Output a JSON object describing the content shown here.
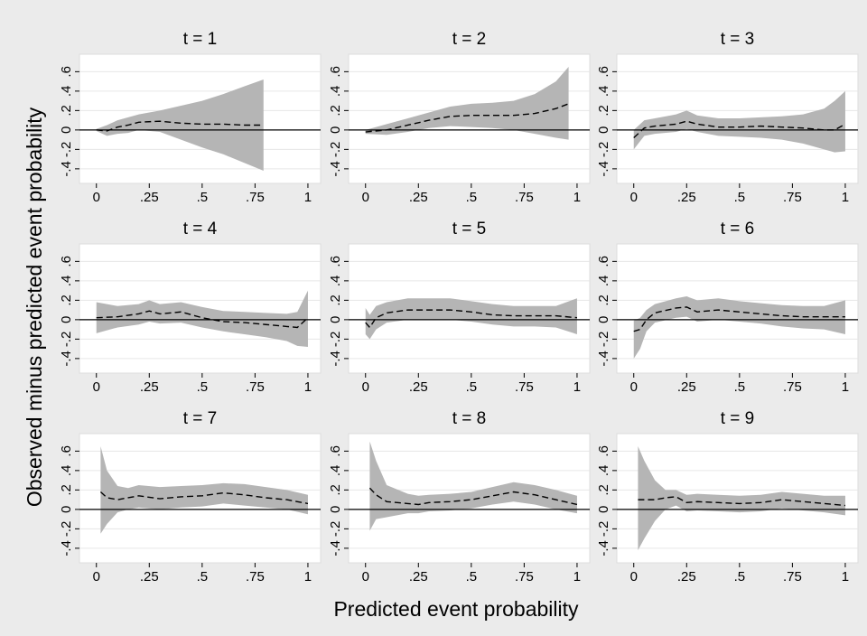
{
  "ylabel": "Observed minus predicted event probability",
  "xlabel": "Predicted event probability",
  "chart_data": [
    {
      "type": "band-line",
      "title": "t = 1",
      "color": "#b5b5b5",
      "line_color": "#000000",
      "grid": true,
      "xlim": [
        -0.08,
        1.06
      ],
      "ylim": [
        -0.55,
        0.78
      ],
      "xticks": [
        0,
        {
          "value": 0.25,
          "label": ".25"
        },
        {
          "value": 0.5,
          "label": ".5"
        },
        {
          "value": 0.75,
          "label": ".75"
        },
        1
      ],
      "yticks": [
        {
          "value": -0.4,
          "label": "-.4"
        },
        {
          "value": -0.2,
          "label": "-.2"
        },
        0,
        {
          "value": 0.2,
          "label": ".2"
        },
        {
          "value": 0.4,
          "label": ".4"
        },
        {
          "value": 0.6,
          "label": ".6"
        }
      ],
      "x": [
        0,
        0.05,
        0.1,
        0.15,
        0.2,
        0.3,
        0.4,
        0.5,
        0.6,
        0.7,
        0.79
      ],
      "values": [
        0,
        -0.01,
        0.03,
        0.05,
        0.08,
        0.09,
        0.07,
        0.06,
        0.06,
        0.05,
        0.05
      ],
      "upper": [
        0.01,
        0.05,
        0.1,
        0.13,
        0.16,
        0.2,
        0.25,
        0.3,
        0.37,
        0.45,
        0.52
      ],
      "lower": [
        -0.01,
        -0.06,
        -0.04,
        -0.03,
        0,
        -0.02,
        -0.1,
        -0.18,
        -0.25,
        -0.34,
        -0.42
      ]
    },
    {
      "type": "band-line",
      "title": "t = 2",
      "color": "#b5b5b5",
      "line_color": "#000000",
      "grid": true,
      "xlim": [
        -0.08,
        1.06
      ],
      "ylim": [
        -0.55,
        0.78
      ],
      "xticks": [
        0,
        {
          "value": 0.25,
          "label": ".25"
        },
        {
          "value": 0.5,
          "label": ".5"
        },
        {
          "value": 0.75,
          "label": ".75"
        },
        1
      ],
      "yticks": [
        {
          "value": -0.4,
          "label": "-.4"
        },
        {
          "value": -0.2,
          "label": "-.2"
        },
        0,
        {
          "value": 0.2,
          "label": ".2"
        },
        {
          "value": 0.4,
          "label": ".4"
        },
        {
          "value": 0.6,
          "label": ".6"
        }
      ],
      "x": [
        0,
        0.1,
        0.2,
        0.3,
        0.4,
        0.5,
        0.6,
        0.7,
        0.8,
        0.9,
        0.96
      ],
      "values": [
        -0.02,
        0,
        0.05,
        0.1,
        0.14,
        0.15,
        0.15,
        0.15,
        0.17,
        0.22,
        0.27
      ],
      "upper": [
        0,
        0.06,
        0.12,
        0.18,
        0.24,
        0.27,
        0.28,
        0.3,
        0.37,
        0.5,
        0.65
      ],
      "lower": [
        -0.04,
        -0.05,
        -0.02,
        0.02,
        0.04,
        0.03,
        0.02,
        0,
        -0.04,
        -0.08,
        -0.1
      ]
    },
    {
      "type": "band-line",
      "title": "t = 3",
      "color": "#b5b5b5",
      "line_color": "#000000",
      "grid": true,
      "xlim": [
        -0.08,
        1.06
      ],
      "ylim": [
        -0.55,
        0.78
      ],
      "xticks": [
        0,
        {
          "value": 0.25,
          "label": ".25"
        },
        {
          "value": 0.5,
          "label": ".5"
        },
        {
          "value": 0.75,
          "label": ".75"
        },
        1
      ],
      "yticks": [
        {
          "value": -0.4,
          "label": "-.4"
        },
        {
          "value": -0.2,
          "label": "-.2"
        },
        0,
        {
          "value": 0.2,
          "label": ".2"
        },
        {
          "value": 0.4,
          "label": ".4"
        },
        {
          "value": 0.6,
          "label": ".6"
        }
      ],
      "x": [
        0,
        0.05,
        0.1,
        0.2,
        0.25,
        0.3,
        0.4,
        0.5,
        0.6,
        0.7,
        0.8,
        0.9,
        0.95,
        1
      ],
      "values": [
        -0.08,
        0.02,
        0.04,
        0.06,
        0.09,
        0.06,
        0.03,
        0.03,
        0.04,
        0.03,
        0.02,
        0,
        0,
        0.06
      ],
      "upper": [
        0,
        0.1,
        0.12,
        0.16,
        0.2,
        0.15,
        0.12,
        0.12,
        0.13,
        0.14,
        0.16,
        0.22,
        0.3,
        0.4
      ],
      "lower": [
        -0.2,
        -0.06,
        -0.04,
        -0.02,
        0.01,
        -0.02,
        -0.06,
        -0.07,
        -0.08,
        -0.1,
        -0.14,
        -0.2,
        -0.23,
        -0.22
      ]
    },
    {
      "type": "band-line",
      "title": "t = 4",
      "color": "#b5b5b5",
      "line_color": "#000000",
      "grid": true,
      "xlim": [
        -0.08,
        1.06
      ],
      "ylim": [
        -0.55,
        0.78
      ],
      "xticks": [
        0,
        {
          "value": 0.25,
          "label": ".25"
        },
        {
          "value": 0.5,
          "label": ".5"
        },
        {
          "value": 0.75,
          "label": ".75"
        },
        1
      ],
      "yticks": [
        {
          "value": -0.4,
          "label": "-.4"
        },
        {
          "value": -0.2,
          "label": "-.2"
        },
        0,
        {
          "value": 0.2,
          "label": ".2"
        },
        {
          "value": 0.4,
          "label": ".4"
        },
        {
          "value": 0.6,
          "label": ".6"
        }
      ],
      "x": [
        0,
        0.1,
        0.2,
        0.25,
        0.3,
        0.4,
        0.5,
        0.6,
        0.7,
        0.8,
        0.9,
        0.95,
        1
      ],
      "values": [
        0.02,
        0.03,
        0.06,
        0.09,
        0.06,
        0.08,
        0.02,
        -0.02,
        -0.03,
        -0.05,
        -0.07,
        -0.08,
        0.02
      ],
      "upper": [
        0.18,
        0.14,
        0.16,
        0.2,
        0.16,
        0.18,
        0.13,
        0.09,
        0.08,
        0.07,
        0.06,
        0.08,
        0.3
      ],
      "lower": [
        -0.14,
        -0.08,
        -0.05,
        -0.02,
        -0.04,
        -0.03,
        -0.08,
        -0.12,
        -0.15,
        -0.18,
        -0.22,
        -0.27,
        -0.28
      ]
    },
    {
      "type": "band-line",
      "title": "t = 5",
      "color": "#b5b5b5",
      "line_color": "#000000",
      "grid": true,
      "xlim": [
        -0.08,
        1.06
      ],
      "ylim": [
        -0.55,
        0.78
      ],
      "xticks": [
        0,
        {
          "value": 0.25,
          "label": ".25"
        },
        {
          "value": 0.5,
          "label": ".5"
        },
        {
          "value": 0.75,
          "label": ".75"
        },
        1
      ],
      "yticks": [
        {
          "value": -0.4,
          "label": "-.4"
        },
        {
          "value": -0.2,
          "label": "-.2"
        },
        0,
        {
          "value": 0.2,
          "label": ".2"
        },
        {
          "value": 0.4,
          "label": ".4"
        },
        {
          "value": 0.6,
          "label": ".6"
        }
      ],
      "x": [
        0,
        0.02,
        0.05,
        0.1,
        0.2,
        0.3,
        0.4,
        0.5,
        0.6,
        0.7,
        0.8,
        0.9,
        1
      ],
      "values": [
        -0.03,
        -0.08,
        0.02,
        0.07,
        0.1,
        0.1,
        0.1,
        0.08,
        0.05,
        0.04,
        0.04,
        0.04,
        0.02
      ],
      "upper": [
        0.12,
        0.05,
        0.14,
        0.18,
        0.22,
        0.22,
        0.22,
        0.19,
        0.16,
        0.14,
        0.14,
        0.14,
        0.22
      ],
      "lower": [
        -0.15,
        -0.2,
        -0.1,
        -0.03,
        0,
        0,
        0,
        -0.02,
        -0.05,
        -0.07,
        -0.07,
        -0.08,
        -0.15
      ]
    },
    {
      "type": "band-line",
      "title": "t = 6",
      "color": "#b5b5b5",
      "line_color": "#000000",
      "grid": true,
      "xlim": [
        -0.08,
        1.06
      ],
      "ylim": [
        -0.55,
        0.78
      ],
      "xticks": [
        0,
        {
          "value": 0.25,
          "label": ".25"
        },
        {
          "value": 0.5,
          "label": ".5"
        },
        {
          "value": 0.75,
          "label": ".75"
        },
        1
      ],
      "yticks": [
        {
          "value": -0.4,
          "label": "-.4"
        },
        {
          "value": -0.2,
          "label": "-.2"
        },
        0,
        {
          "value": 0.2,
          "label": ".2"
        },
        {
          "value": 0.4,
          "label": ".4"
        },
        {
          "value": 0.6,
          "label": ".6"
        }
      ],
      "x": [
        0,
        0.03,
        0.06,
        0.1,
        0.2,
        0.25,
        0.3,
        0.4,
        0.5,
        0.6,
        0.7,
        0.8,
        0.9,
        1
      ],
      "values": [
        -0.12,
        -0.1,
        0,
        0.07,
        0.12,
        0.13,
        0.08,
        0.1,
        0.08,
        0.06,
        0.04,
        0.03,
        0.03,
        0.03
      ],
      "upper": [
        -0.01,
        0.02,
        0.1,
        0.16,
        0.22,
        0.24,
        0.2,
        0.22,
        0.19,
        0.17,
        0.15,
        0.14,
        0.14,
        0.2
      ],
      "lower": [
        -0.4,
        -0.3,
        -0.12,
        -0.03,
        0.02,
        0.03,
        -0.02,
        0,
        -0.02,
        -0.04,
        -0.07,
        -0.09,
        -0.1,
        -0.15
      ]
    },
    {
      "type": "band-line",
      "title": "t = 7",
      "color": "#b5b5b5",
      "line_color": "#000000",
      "grid": true,
      "xlim": [
        -0.08,
        1.06
      ],
      "ylim": [
        -0.55,
        0.78
      ],
      "xticks": [
        0,
        {
          "value": 0.25,
          "label": ".25"
        },
        {
          "value": 0.5,
          "label": ".5"
        },
        {
          "value": 0.75,
          "label": ".75"
        },
        1
      ],
      "yticks": [
        {
          "value": -0.4,
          "label": "-.4"
        },
        {
          "value": -0.2,
          "label": "-.2"
        },
        0,
        {
          "value": 0.2,
          "label": ".2"
        },
        {
          "value": 0.4,
          "label": ".4"
        },
        {
          "value": 0.6,
          "label": ".6"
        }
      ],
      "x": [
        0.02,
        0.05,
        0.1,
        0.15,
        0.2,
        0.3,
        0.4,
        0.5,
        0.6,
        0.7,
        0.8,
        0.9,
        1
      ],
      "values": [
        0.18,
        0.12,
        0.1,
        0.12,
        0.14,
        0.11,
        0.13,
        0.14,
        0.17,
        0.15,
        0.12,
        0.1,
        0.06
      ],
      "upper": [
        0.65,
        0.4,
        0.24,
        0.22,
        0.25,
        0.23,
        0.24,
        0.25,
        0.27,
        0.26,
        0.23,
        0.2,
        0.15
      ],
      "lower": [
        -0.25,
        -0.15,
        -0.03,
        0,
        0.02,
        0,
        0.02,
        0.03,
        0.06,
        0.04,
        0.02,
        0,
        -0.05
      ]
    },
    {
      "type": "band-line",
      "title": "t = 8",
      "color": "#b5b5b5",
      "line_color": "#000000",
      "grid": true,
      "xlim": [
        -0.08,
        1.06
      ],
      "ylim": [
        -0.55,
        0.78
      ],
      "xticks": [
        0,
        {
          "value": 0.25,
          "label": ".25"
        },
        {
          "value": 0.5,
          "label": ".5"
        },
        {
          "value": 0.75,
          "label": ".75"
        },
        1
      ],
      "yticks": [
        {
          "value": -0.4,
          "label": "-.4"
        },
        {
          "value": -0.2,
          "label": "-.2"
        },
        0,
        {
          "value": 0.2,
          "label": ".2"
        },
        {
          "value": 0.4,
          "label": ".4"
        },
        {
          "value": 0.6,
          "label": ".6"
        }
      ],
      "x": [
        0.02,
        0.05,
        0.1,
        0.2,
        0.25,
        0.3,
        0.4,
        0.5,
        0.6,
        0.7,
        0.8,
        0.9,
        1
      ],
      "values": [
        0.22,
        0.15,
        0.08,
        0.06,
        0.05,
        0.07,
        0.08,
        0.1,
        0.14,
        0.18,
        0.15,
        0.1,
        0.05
      ],
      "upper": [
        0.7,
        0.5,
        0.25,
        0.16,
        0.14,
        0.15,
        0.16,
        0.18,
        0.23,
        0.28,
        0.25,
        0.2,
        0.14
      ],
      "lower": [
        -0.22,
        -0.1,
        -0.08,
        -0.04,
        -0.04,
        -0.02,
        -0.01,
        0.01,
        0.05,
        0.08,
        0.05,
        0,
        -0.04
      ]
    },
    {
      "type": "band-line",
      "title": "t = 9",
      "color": "#b5b5b5",
      "line_color": "#000000",
      "grid": true,
      "xlim": [
        -0.08,
        1.06
      ],
      "ylim": [
        -0.55,
        0.78
      ],
      "xticks": [
        0,
        {
          "value": 0.25,
          "label": ".25"
        },
        {
          "value": 0.5,
          "label": ".5"
        },
        {
          "value": 0.75,
          "label": ".75"
        },
        1
      ],
      "yticks": [
        {
          "value": -0.4,
          "label": "-.4"
        },
        {
          "value": -0.2,
          "label": "-.2"
        },
        0,
        {
          "value": 0.2,
          "label": ".2"
        },
        {
          "value": 0.4,
          "label": ".4"
        },
        {
          "value": 0.6,
          "label": ".6"
        }
      ],
      "x": [
        0.02,
        0.05,
        0.1,
        0.15,
        0.2,
        0.25,
        0.3,
        0.4,
        0.5,
        0.6,
        0.7,
        0.8,
        0.9,
        1
      ],
      "values": [
        0.1,
        0.1,
        0.1,
        0.12,
        0.13,
        0.07,
        0.08,
        0.07,
        0.06,
        0.07,
        0.1,
        0.08,
        0.06,
        0.04
      ],
      "upper": [
        0.65,
        0.5,
        0.3,
        0.2,
        0.2,
        0.15,
        0.16,
        0.15,
        0.14,
        0.15,
        0.18,
        0.16,
        0.14,
        0.14
      ],
      "lower": [
        -0.42,
        -0.3,
        -0.12,
        0,
        0.04,
        -0.02,
        -0.01,
        -0.02,
        -0.03,
        -0.02,
        0.01,
        -0.01,
        -0.03,
        -0.06
      ]
    }
  ]
}
